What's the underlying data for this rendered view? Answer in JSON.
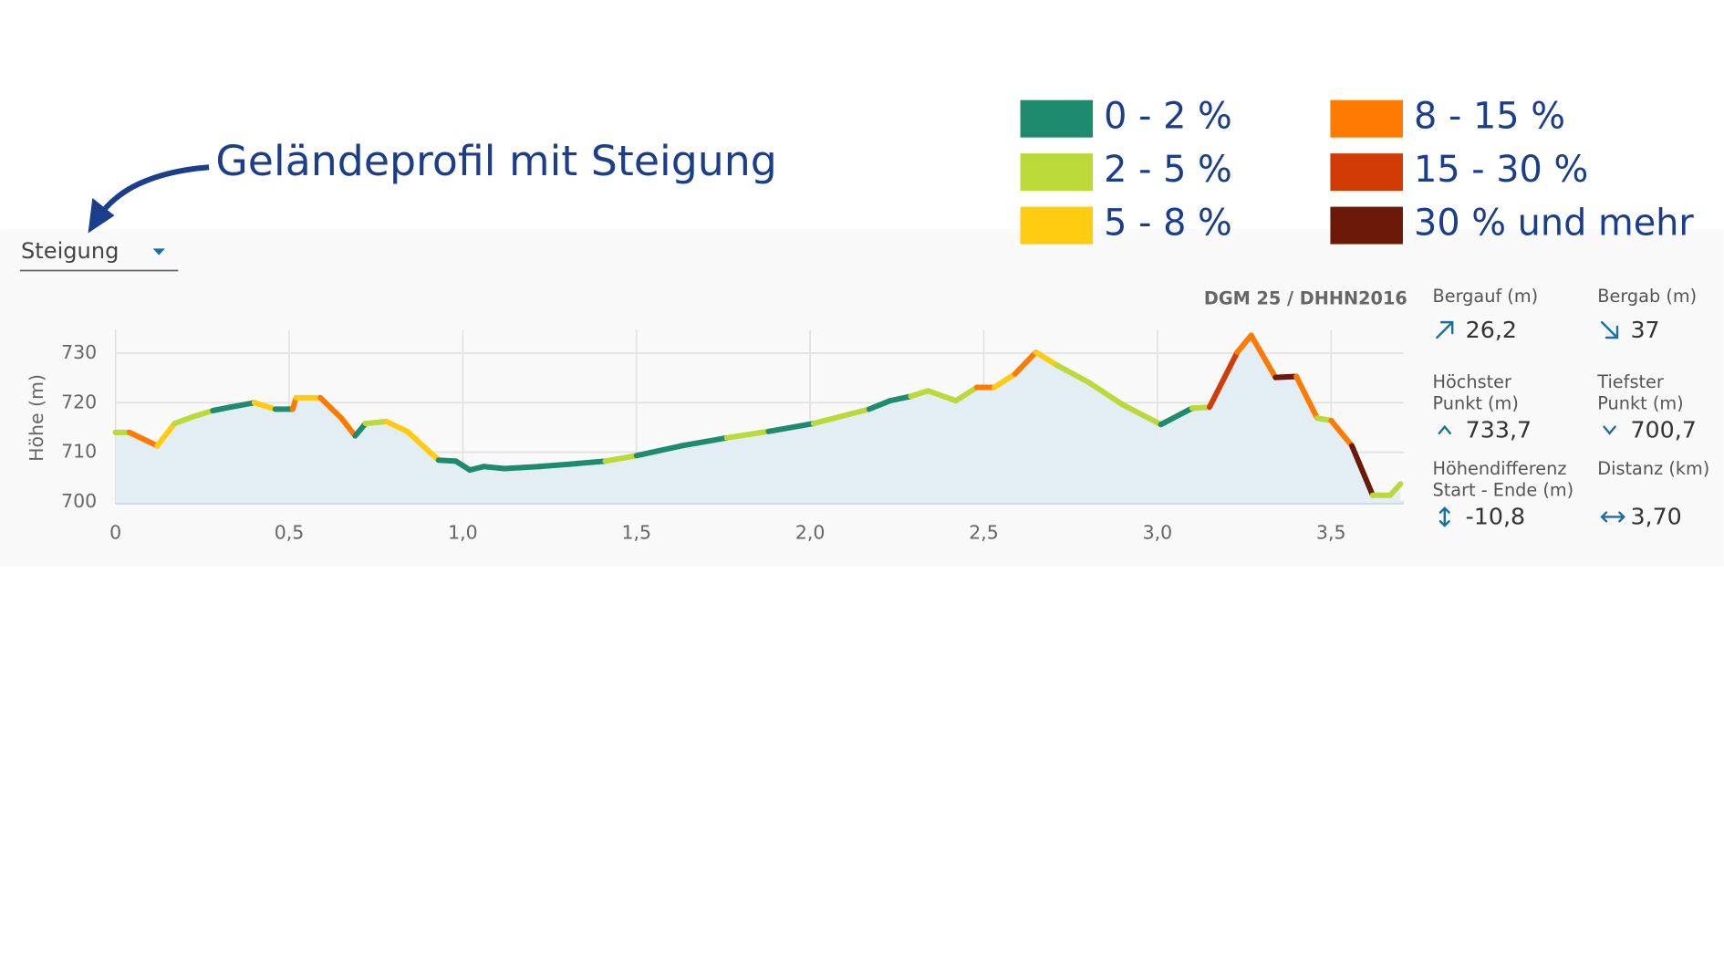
{
  "annotation": "Geländeprofil mit Steigung",
  "dropdown": "Steigung",
  "source": "DGM 25 / DHHN2016",
  "chart_data": {
    "type": "area",
    "y_label": "Höhe (m)",
    "legend": [
      {
        "name": "0 - 2 %",
        "color": "#1e8a6e"
      },
      {
        "name": "2 - 5 %",
        "color": "#bcd93a"
      },
      {
        "name": "5 - 8 %",
        "color": "#ffcc11"
      },
      {
        "name": "8 - 15 %",
        "color": "#ff7a00"
      },
      {
        "name": "15 - 30 %",
        "color": "#d23a06"
      },
      {
        "name": "30 % und mehr",
        "color": "#6b1a08"
      }
    ],
    "fill": "#e2edf4",
    "x": [
      0,
      0.04,
      0.12,
      0.17,
      0.22,
      0.28,
      0.33,
      0.4,
      0.46,
      0.51,
      0.52,
      0.59,
      0.65,
      0.69,
      0.72,
      0.78,
      0.84,
      0.93,
      0.98,
      1.02,
      1.06,
      1.12,
      1.22,
      1.31,
      1.41,
      1.5,
      1.63,
      1.76,
      1.88,
      2.01,
      2.17,
      2.23,
      2.29,
      2.34,
      2.42,
      2.48,
      2.53,
      2.59,
      2.65,
      2.71,
      2.8,
      2.9,
      3.01,
      3.1,
      3.15,
      3.23,
      3.27,
      3.34,
      3.4,
      3.46,
      3.5,
      3.56,
      3.62,
      3.67,
      3.7
    ],
    "values": [
      714,
      714,
      711.3,
      715.8,
      717.1,
      718.4,
      719.1,
      720,
      718.7,
      718.7,
      721,
      721,
      716.9,
      713.3,
      715.8,
      716.2,
      714.2,
      708.4,
      708.2,
      706.4,
      707.1,
      706.7,
      707.1,
      707.6,
      708.2,
      709.3,
      711.3,
      712.9,
      714.2,
      715.8,
      718.7,
      720.4,
      721.3,
      722.4,
      720.4,
      723.1,
      723.1,
      725.8,
      730.2,
      727.6,
      724.2,
      719.6,
      715.6,
      718.9,
      719.1,
      730.2,
      733.6,
      725.1,
      725.3,
      716.9,
      716.4,
      711.3,
      701.3,
      701.3,
      703.6
    ],
    "colors": [
      "#bcd93a",
      "#bcd93a",
      "#ff7a00",
      "#ffcc11",
      "#bcd93a",
      "#bcd93a",
      "#1e8a6e",
      "#1e8a6e",
      "#ffcc11",
      "#1e8a6e",
      "#ff7a00",
      "#ffcc11",
      "#ff7a00",
      "#ff7a00",
      "#1e8a6e",
      "#bcd93a",
      "#ffcc11",
      "#ffcc11",
      "#1e8a6e",
      "#1e8a6e",
      "#1e8a6e",
      "#1e8a6e",
      "#1e8a6e",
      "#1e8a6e",
      "#1e8a6e",
      "#bcd93a",
      "#1e8a6e",
      "#1e8a6e",
      "#bcd93a",
      "#1e8a6e",
      "#bcd93a",
      "#1e8a6e",
      "#1e8a6e",
      "#bcd93a",
      "#bcd93a",
      "#bcd93a",
      "#ff7a00",
      "#ffcc11",
      "#ff7a00",
      "#ffcc11",
      "#bcd93a",
      "#bcd93a",
      "#bcd93a",
      "#1e8a6e",
      "#bcd93a",
      "#d23a06",
      "#ff7a00",
      "#ff7a00",
      "#6b1a08",
      "#ff7a00",
      "#bcd93a",
      "#ff7a00",
      "#6b1a08",
      "#bcd93a",
      "#bcd93a"
    ],
    "xlim": [
      0,
      3.71
    ],
    "ylim": [
      699.6,
      734.7
    ],
    "xticks": [
      0,
      {
        "value": 0.5,
        "label": "0,5"
      },
      {
        "value": 1,
        "label": "1,0"
      },
      {
        "value": 1.5,
        "label": "1,5"
      },
      {
        "value": 2,
        "label": "2,0"
      },
      {
        "value": 2.5,
        "label": "2,5"
      },
      {
        "value": 3,
        "label": "3,0"
      },
      {
        "value": 3.5,
        "label": "3,5"
      }
    ],
    "yticks": [
      700,
      710,
      720,
      730
    ],
    "grid": true
  },
  "stats": [
    {
      "label": [
        "Bergauf (m)"
      ],
      "value": "26,2"
    },
    {
      "label": [
        "Bergab (m)"
      ],
      "value": "37"
    },
    {
      "label": [
        "Höchster",
        "Punkt (m)"
      ],
      "value": "733,7"
    },
    {
      "label": [
        "Tiefster",
        "Punkt (m)"
      ],
      "value": "700,7"
    },
    {
      "label": [
        "Höhendifferenz",
        "Start - Ende (m)"
      ],
      "value": "-10,8"
    },
    {
      "label": [
        "Distanz (km)"
      ],
      "value": "3,70"
    }
  ]
}
